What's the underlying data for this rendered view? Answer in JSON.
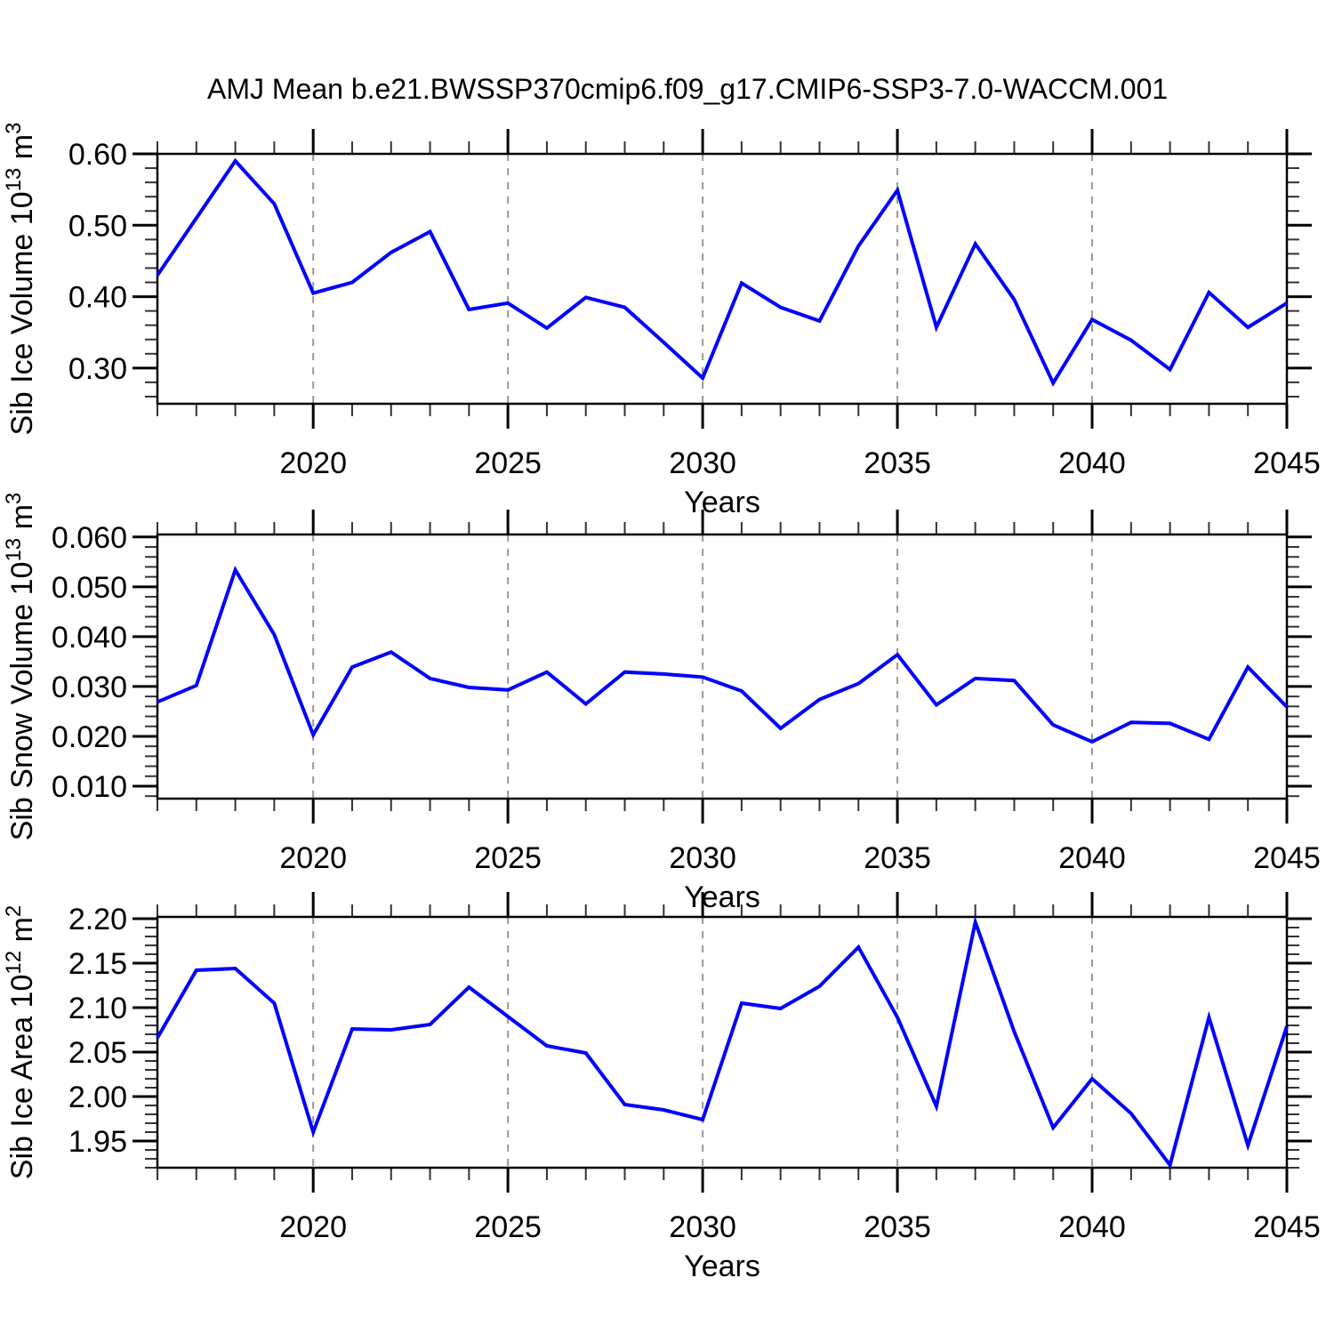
{
  "title": "AMJ Mean b.e21.BWSSP370cmip6.f09_g17.CMIP6-SSP3-7.0-WACCM.001",
  "style": {
    "line_color": "#0000ff",
    "grid_color": "#999999",
    "frame_color": "#000000",
    "minor_tick_color": "#333333"
  },
  "chart_data": [
    {
      "name": "sib-ice-volume",
      "type": "line",
      "ylabel_parts": [
        "Sib Ice Volume 10",
        {
          "sup": "13"
        },
        " m",
        {
          "sup": "3"
        }
      ],
      "xlabel": "Years",
      "x": [
        2016,
        2017,
        2018,
        2019,
        2020,
        2021,
        2022,
        2023,
        2024,
        2025,
        2026,
        2027,
        2028,
        2029,
        2030,
        2031,
        2032,
        2033,
        2034,
        2035,
        2036,
        2037,
        2038,
        2039,
        2040,
        2041,
        2042,
        2043,
        2044,
        2045
      ],
      "values": [
        0.43,
        0.51,
        0.59,
        0.53,
        0.405,
        0.42,
        0.462,
        0.491,
        0.382,
        0.391,
        0.356,
        0.399,
        0.385,
        0.336,
        0.286,
        0.419,
        0.385,
        0.366,
        0.471,
        0.549,
        0.357,
        0.474,
        0.396,
        0.279,
        0.368,
        0.339,
        0.298,
        0.406,
        0.357,
        0.391
      ],
      "xlim": [
        2016,
        2045
      ],
      "ylim": [
        0.25,
        0.6
      ],
      "xticks_major": [
        2020,
        2025,
        2030,
        2035,
        2040,
        2045
      ],
      "xtick_labels": [
        "2020",
        "2025",
        "2030",
        "2035",
        "2040",
        "2045"
      ],
      "xminor_step": 1,
      "yticks_major": [
        0.3,
        0.4,
        0.5,
        0.6
      ],
      "ytick_labels": [
        "0.30",
        "0.40",
        "0.50",
        "0.60"
      ],
      "yminor_step": 0.02,
      "grid_x": [
        2020,
        2025,
        2030,
        2035,
        2040
      ]
    },
    {
      "name": "sib-snow-volume",
      "type": "line",
      "ylabel_parts": [
        "Sib Snow Volume 10",
        {
          "sup": "13"
        },
        " m",
        {
          "sup": "3"
        }
      ],
      "xlabel": "Years",
      "x": [
        2016,
        2017,
        2018,
        2019,
        2020,
        2021,
        2022,
        2023,
        2024,
        2025,
        2026,
        2027,
        2028,
        2029,
        2030,
        2031,
        2032,
        2033,
        2034,
        2035,
        2036,
        2037,
        2038,
        2039,
        2040,
        2041,
        2042,
        2043,
        2044,
        2045
      ],
      "values": [
        0.0269,
        0.0302,
        0.0534,
        0.0404,
        0.0203,
        0.0339,
        0.0369,
        0.0316,
        0.0298,
        0.0293,
        0.0329,
        0.0265,
        0.0329,
        0.0325,
        0.0319,
        0.0291,
        0.0216,
        0.0274,
        0.0306,
        0.0364,
        0.0263,
        0.0316,
        0.0312,
        0.0223,
        0.0189,
        0.0228,
        0.0226,
        0.0194,
        0.0339,
        0.0259
      ],
      "xlim": [
        2016,
        2045
      ],
      "ylim": [
        0.0075,
        0.0605
      ],
      "xticks_major": [
        2020,
        2025,
        2030,
        2035,
        2040,
        2045
      ],
      "xtick_labels": [
        "2020",
        "2025",
        "2030",
        "2035",
        "2040",
        "2045"
      ],
      "xminor_step": 1,
      "yticks_major": [
        0.01,
        0.02,
        0.03,
        0.04,
        0.05,
        0.06
      ],
      "ytick_labels": [
        "0.010",
        "0.020",
        "0.030",
        "0.040",
        "0.050",
        "0.060"
      ],
      "yminor_step": 0.002,
      "grid_x": [
        2020,
        2025,
        2030,
        2035,
        2040
      ]
    },
    {
      "name": "sib-ice-area",
      "type": "line",
      "ylabel_parts": [
        "Sib Ice Area 10",
        {
          "sup": "12"
        },
        " m",
        {
          "sup": "2"
        }
      ],
      "xlabel": "Years",
      "x": [
        2016,
        2017,
        2018,
        2019,
        2020,
        2021,
        2022,
        2023,
        2024,
        2025,
        2026,
        2027,
        2028,
        2029,
        2030,
        2031,
        2032,
        2033,
        2034,
        2035,
        2036,
        2037,
        2038,
        2039,
        2040,
        2041,
        2042,
        2043,
        2044,
        2045
      ],
      "values": [
        2.066,
        2.142,
        2.144,
        2.105,
        1.96,
        2.076,
        2.075,
        2.081,
        2.123,
        2.09,
        2.057,
        2.049,
        1.991,
        1.985,
        1.974,
        2.105,
        2.099,
        2.124,
        2.168,
        2.089,
        1.989,
        2.196,
        2.073,
        1.965,
        2.02,
        1.981,
        1.923,
        2.089,
        1.945,
        2.079
      ],
      "xlim": [
        2016,
        2045
      ],
      "ylim": [
        1.92,
        2.202
      ],
      "xticks_major": [
        2020,
        2025,
        2030,
        2035,
        2040,
        2045
      ],
      "xtick_labels": [
        "2020",
        "2025",
        "2030",
        "2035",
        "2040",
        "2045"
      ],
      "xminor_step": 1,
      "yticks_major": [
        1.95,
        2.0,
        2.05,
        2.1,
        2.15,
        2.2
      ],
      "ytick_labels": [
        "1.95",
        "2.00",
        "2.05",
        "2.10",
        "2.15",
        "2.20"
      ],
      "yminor_step": 0.01,
      "grid_x": [
        2020,
        2025,
        2030,
        2035,
        2040
      ]
    }
  ]
}
